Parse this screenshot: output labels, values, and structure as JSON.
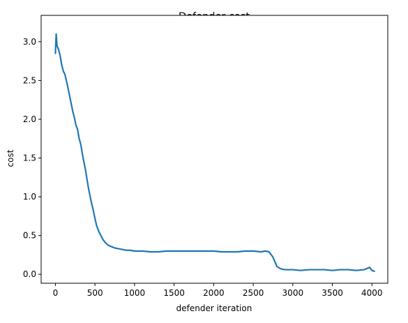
{
  "chart_data": {
    "type": "line",
    "title": "Defender cost",
    "xlabel": "defender iteration",
    "ylabel": "cost",
    "xlim": [
      -180,
      4200
    ],
    "ylim": [
      -0.115,
      3.34
    ],
    "xticks": [
      0,
      500,
      1000,
      1500,
      2000,
      2500,
      3000,
      3500,
      4000
    ],
    "yticks": [
      0.0,
      0.5,
      1.0,
      1.5,
      2.0,
      2.5,
      3.0
    ],
    "xtick_labels": [
      "0",
      "500",
      "1000",
      "1500",
      "2000",
      "2500",
      "3000",
      "3500",
      "4000"
    ],
    "ytick_labels": [
      "0.0",
      "0.5",
      "1.0",
      "1.5",
      "2.0",
      "2.5",
      "3.0"
    ],
    "grid": false,
    "line_color": "#1f77b4",
    "series": [
      {
        "x": [
          0,
          10,
          20,
          40,
          60,
          80,
          100,
          120,
          150,
          180,
          200,
          220,
          240,
          260,
          280,
          300,
          320,
          350,
          380,
          400,
          420,
          450,
          480,
          500,
          520,
          550,
          580,
          600,
          630,
          660,
          700,
          750,
          800,
          850,
          900,
          950,
          1000,
          1100,
          1200,
          1300,
          1400,
          1500,
          1600,
          1700,
          1800,
          1900,
          2000,
          2100,
          2200,
          2300,
          2400,
          2500,
          2600,
          2650,
          2700,
          2750,
          2800,
          2850,
          2900,
          3000,
          3100,
          3200,
          3300,
          3400,
          3500,
          3600,
          3700,
          3800,
          3900,
          3970,
          4000,
          4030
        ],
        "y": [
          2.85,
          3.1,
          2.95,
          2.9,
          2.82,
          2.7,
          2.62,
          2.58,
          2.45,
          2.3,
          2.2,
          2.1,
          2.02,
          1.92,
          1.87,
          1.75,
          1.68,
          1.5,
          1.35,
          1.22,
          1.1,
          0.95,
          0.82,
          0.72,
          0.63,
          0.55,
          0.49,
          0.45,
          0.41,
          0.38,
          0.36,
          0.34,
          0.33,
          0.32,
          0.31,
          0.31,
          0.3,
          0.3,
          0.29,
          0.29,
          0.3,
          0.3,
          0.3,
          0.3,
          0.3,
          0.3,
          0.3,
          0.29,
          0.29,
          0.29,
          0.3,
          0.3,
          0.29,
          0.3,
          0.29,
          0.22,
          0.1,
          0.07,
          0.06,
          0.06,
          0.05,
          0.06,
          0.06,
          0.06,
          0.05,
          0.06,
          0.06,
          0.05,
          0.06,
          0.09,
          0.05,
          0.04
        ]
      }
    ]
  }
}
